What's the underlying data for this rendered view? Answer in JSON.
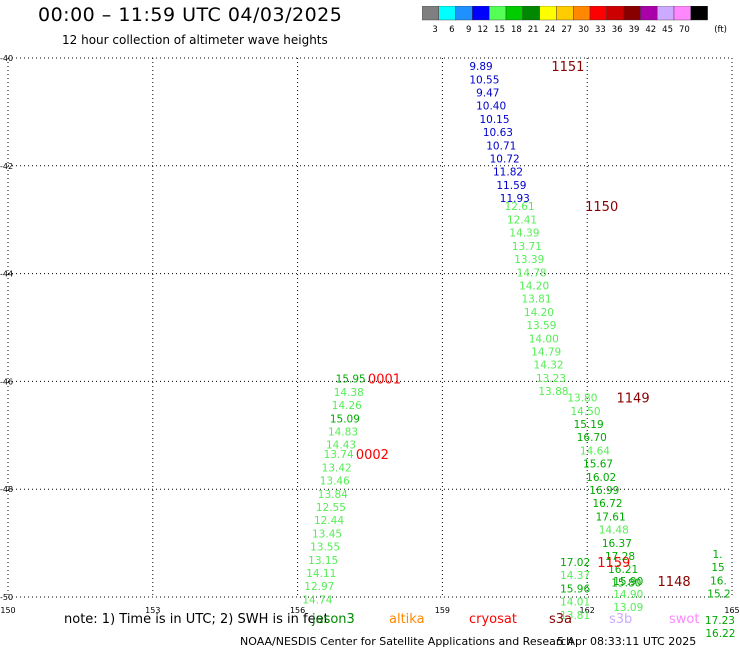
{
  "header": {
    "title": "00:00 – 11:59 UTC 04/03/2025",
    "subtitle": "12 hour collection of altimeter wave heights"
  },
  "legend": {
    "unit": "(ft)",
    "bins": [
      {
        "label": "3",
        "color": "#7f7f7f"
      },
      {
        "label": "6",
        "color": "#00ffff"
      },
      {
        "label": "9",
        "color": "#1e90ff"
      },
      {
        "label": "12",
        "color": "#0000ff"
      },
      {
        "label": "15",
        "color": "#55ff55"
      },
      {
        "label": "18",
        "color": "#00cc00"
      },
      {
        "label": "21",
        "color": "#008800"
      },
      {
        "label": "24",
        "color": "#ffff00"
      },
      {
        "label": "27",
        "color": "#ffcc00"
      },
      {
        "label": "30",
        "color": "#ff8800"
      },
      {
        "label": "33",
        "color": "#ff0000"
      },
      {
        "label": "36",
        "color": "#cc0000"
      },
      {
        "label": "39",
        "color": "#880000"
      },
      {
        "label": "42",
        "color": "#aa00aa"
      },
      {
        "label": "45",
        "color": "#ccaaff"
      },
      {
        "label": "70",
        "color": "#ff88ff"
      },
      {
        "label": "",
        "color": "#000000"
      }
    ]
  },
  "map": {
    "lat_labels": [
      "-40",
      "-42",
      "-44",
      "-46",
      "-48",
      "-50"
    ],
    "lon_labels": [
      "150",
      "153",
      "156",
      "159",
      "162",
      "165"
    ],
    "lat_range": [
      -50,
      -40
    ],
    "lon_range": [
      150,
      165
    ],
    "tracks": [
      {
        "label": "1151",
        "label_color": "#880000",
        "label_lon": 161.6,
        "label_lat": -40.15,
        "lon_start": 159.8,
        "lon_step": 0.07,
        "lat_start": -40.15,
        "lat_step": -0.245,
        "values": [
          {
            "v": "9.89",
            "c": "#0000cc"
          },
          {
            "v": "10.55",
            "c": "#0000cc"
          },
          {
            "v": "9.47",
            "c": "#0000cc"
          },
          {
            "v": "10.40",
            "c": "#0000cc"
          },
          {
            "v": "10.15",
            "c": "#0000cc"
          },
          {
            "v": "10.63",
            "c": "#0000cc"
          },
          {
            "v": "10.71",
            "c": "#0000cc"
          },
          {
            "v": "10.72",
            "c": "#0000cc"
          },
          {
            "v": "11.82",
            "c": "#0000cc"
          },
          {
            "v": "11.59",
            "c": "#0000cc"
          },
          {
            "v": "11.93",
            "c": "#0000cc"
          }
        ]
      },
      {
        "label": "1150",
        "label_color": "#880000",
        "label_lon": 162.3,
        "label_lat": -42.75,
        "lon_start": 160.6,
        "lon_step": 0.05,
        "lat_start": -42.75,
        "lat_step": -0.245,
        "values": [
          {
            "v": "12.61",
            "c": "#55ee55"
          },
          {
            "v": "12.41",
            "c": "#55ee55"
          },
          {
            "v": "14.39",
            "c": "#55ee55"
          },
          {
            "v": "13.71",
            "c": "#55ee55"
          },
          {
            "v": "13.39",
            "c": "#55ee55"
          },
          {
            "v": "14.78",
            "c": "#55ee55"
          },
          {
            "v": "14.20",
            "c": "#55ee55"
          },
          {
            "v": "13.81",
            "c": "#55ee55"
          },
          {
            "v": "14.20",
            "c": "#55ee55"
          },
          {
            "v": "13.59",
            "c": "#55ee55"
          },
          {
            "v": "14.00",
            "c": "#55ee55"
          },
          {
            "v": "14.79",
            "c": "#55ee55"
          },
          {
            "v": "14.32",
            "c": "#55ee55"
          },
          {
            "v": "13.23",
            "c": "#55ee55"
          },
          {
            "v": "13.88",
            "c": "#55ee55"
          }
        ]
      },
      {
        "label": "1149",
        "label_color": "#880000",
        "label_lon": 162.95,
        "label_lat": -46.3,
        "lon_start": 161.9,
        "lon_step": 0.065,
        "lat_start": -46.3,
        "lat_step": -0.245,
        "values": [
          {
            "v": "13.80",
            "c": "#55ee55"
          },
          {
            "v": "14.50",
            "c": "#55ee55"
          },
          {
            "v": "15.19",
            "c": "#00aa00"
          },
          {
            "v": "16.70",
            "c": "#00aa00"
          },
          {
            "v": "14.64",
            "c": "#55ee55"
          },
          {
            "v": "15.67",
            "c": "#00aa00"
          },
          {
            "v": "16.02",
            "c": "#00aa00"
          },
          {
            "v": "16.99",
            "c": "#00aa00"
          },
          {
            "v": "16.72",
            "c": "#00aa00"
          },
          {
            "v": "17.61",
            "c": "#00aa00"
          },
          {
            "v": "14.48",
            "c": "#55ee55"
          },
          {
            "v": "16.37",
            "c": "#00aa00"
          },
          {
            "v": "17.28",
            "c": "#00aa00"
          },
          {
            "v": "16.21",
            "c": "#00aa00"
          },
          {
            "v": "15.80",
            "c": "#00aa00"
          }
        ]
      },
      {
        "label": "1148",
        "label_color": "#880000",
        "label_lon": 163.8,
        "label_lat": -49.7,
        "lon_start": 162.85,
        "lon_step": 0,
        "lat_start": -49.7,
        "lat_step": -0.245,
        "values": [
          {
            "v": "15.90",
            "c": "#00aa00"
          },
          {
            "v": "14.90",
            "c": "#55ee55"
          },
          {
            "v": "13.09",
            "c": "#55ee55"
          }
        ]
      },
      {
        "label": "",
        "label_color": "#880000",
        "label_lon": 165,
        "label_lat": -49.5,
        "lon_start": 164.7,
        "lon_step": 0.01,
        "lat_start": -49.2,
        "lat_step": -0.245,
        "values": [
          {
            "v": "1.",
            "c": "#00aa00"
          },
          {
            "v": "15",
            "c": "#00aa00"
          },
          {
            "v": "16.",
            "c": "#00aa00"
          },
          {
            "v": "15.2",
            "c": "#00aa00"
          },
          {
            "v": "",
            "c": "#00aa00"
          },
          {
            "v": "17.23",
            "c": "#00aa00"
          },
          {
            "v": "16.22",
            "c": "#00aa00"
          }
        ]
      },
      {
        "label": "1159",
        "label_color": "#ff0000",
        "label_lon": 162.55,
        "label_lat": -49.35,
        "lon_start": 161.75,
        "lon_step": 0,
        "lat_start": -49.35,
        "lat_step": -0.245,
        "values": [
          {
            "v": "17.02",
            "c": "#00aa00"
          },
          {
            "v": "14.37",
            "c": "#55ee55"
          },
          {
            "v": "15.96",
            "c": "#00aa00"
          },
          {
            "v": "14.01",
            "c": "#55ee55"
          },
          {
            "v": "13.81",
            "c": "#55ee55"
          }
        ]
      },
      {
        "label": "0001",
        "label_color": "#ff0000",
        "label_lon": 157.8,
        "label_lat": -45.95,
        "lon_start": 157.1,
        "lon_step": -0.04,
        "lat_start": -45.95,
        "lat_step": -0.245,
        "values": [
          {
            "v": "15.95",
            "c": "#00aa00"
          },
          {
            "v": "14.38",
            "c": "#55ee55"
          },
          {
            "v": "14.26",
            "c": "#55ee55"
          },
          {
            "v": "15.09",
            "c": "#00aa00"
          },
          {
            "v": "14.83",
            "c": "#55ee55"
          },
          {
            "v": "14.43",
            "c": "#55ee55"
          }
        ]
      },
      {
        "label": "0002",
        "label_color": "#ff0000",
        "label_lon": 157.55,
        "label_lat": -47.35,
        "lon_start": 156.85,
        "lon_step": -0.04,
        "lat_start": -47.35,
        "lat_step": -0.245,
        "values": [
          {
            "v": "13.74",
            "c": "#55ee55"
          },
          {
            "v": "13.42",
            "c": "#55ee55"
          },
          {
            "v": "13.46",
            "c": "#55ee55"
          },
          {
            "v": "13.84",
            "c": "#55ee55"
          },
          {
            "v": "12.55",
            "c": "#55ee55"
          },
          {
            "v": "12.44",
            "c": "#55ee55"
          },
          {
            "v": "13.45",
            "c": "#55ee55"
          },
          {
            "v": "13.55",
            "c": "#55ee55"
          },
          {
            "v": "13.15",
            "c": "#55ee55"
          },
          {
            "v": "14.11",
            "c": "#55ee55"
          },
          {
            "v": "12.97",
            "c": "#55ee55"
          },
          {
            "v": "14.74",
            "c": "#55ee55"
          }
        ]
      }
    ]
  },
  "footer": {
    "note": "note: 1) Time is in UTC; 2) SWH is in feet",
    "satellites": [
      {
        "name": "jason3",
        "color": "#008800"
      },
      {
        "name": "altika",
        "color": "#ff8800"
      },
      {
        "name": "cryosat",
        "color": "#ff0000"
      },
      {
        "name": "s3a",
        "color": "#880000"
      },
      {
        "name": "s3b",
        "color": "#ccaaff"
      },
      {
        "name": "swot",
        "color": "#ff88ff"
      }
    ],
    "credit": "NOAA/NESDIS Center for Satellite Applications and Research",
    "timestamp": "5 Apr 08:33:11 UTC 2025"
  }
}
